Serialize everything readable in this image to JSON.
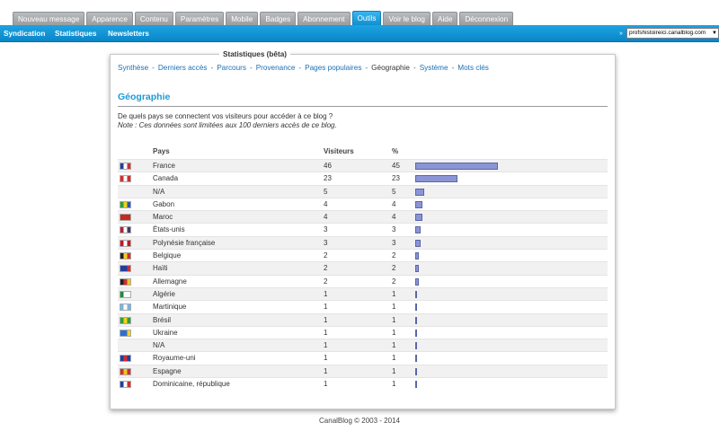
{
  "tabs": [
    {
      "label": "Nouveau message",
      "active": false
    },
    {
      "label": "Apparence",
      "active": false
    },
    {
      "label": "Contenu",
      "active": false
    },
    {
      "label": "Paramètres",
      "active": false
    },
    {
      "label": "Mobile",
      "active": false
    },
    {
      "label": "Badges",
      "active": false
    },
    {
      "label": "Abonnement",
      "active": false
    },
    {
      "label": "Outils",
      "active": true
    },
    {
      "label": "Voir le blog",
      "active": false
    },
    {
      "label": "Aide",
      "active": false
    },
    {
      "label": "Déconnexion",
      "active": false
    }
  ],
  "subnav": {
    "items": [
      "Syndication",
      "Statistiques",
      "Newsletters"
    ],
    "blog_selector_arrow": "»",
    "blog_selector_value": "profshistoireici.canalblog.com"
  },
  "panel": {
    "title": "Statistiques (bêta)",
    "nav": [
      {
        "label": "Synthèse",
        "current": false
      },
      {
        "label": "Derniers accès",
        "current": false
      },
      {
        "label": "Parcours",
        "current": false
      },
      {
        "label": "Provenance",
        "current": false
      },
      {
        "label": "Pages populaires",
        "current": false
      },
      {
        "label": "Géographie",
        "current": true
      },
      {
        "label": "Système",
        "current": false
      },
      {
        "label": "Mots clés",
        "current": false
      }
    ],
    "nav_separator": "-",
    "section_title": "Géographie",
    "question": "De quels pays se connectent vos visiteurs pour accéder à ce blog ?",
    "note": "Note : Ces données sont limitées aux 100 derniers accès de ce blog."
  },
  "table": {
    "headers": {
      "country": "Pays",
      "visitors": "Visiteurs",
      "percent": "%"
    },
    "rows": [
      {
        "country": "France",
        "visitors": "46",
        "percent": "45",
        "share": 45,
        "flag": "flag-france-icon",
        "colors": [
          "#1f3fa0",
          "#ffffff",
          "#d22d2d"
        ]
      },
      {
        "country": "Canada",
        "visitors": "23",
        "percent": "23",
        "share": 23,
        "flag": "flag-canada-icon",
        "colors": [
          "#d22d2d",
          "#ffffff",
          "#d22d2d"
        ]
      },
      {
        "country": "N/A",
        "visitors": "5",
        "percent": "5",
        "share": 5,
        "flag": "",
        "colors": []
      },
      {
        "country": "Gabon",
        "visitors": "4",
        "percent": "4",
        "share": 4,
        "flag": "flag-gabon-icon",
        "colors": [
          "#2e9e3a",
          "#f2d21a",
          "#2d56b0"
        ]
      },
      {
        "country": "Maroc",
        "visitors": "4",
        "percent": "4",
        "share": 4,
        "flag": "flag-morocco-icon",
        "colors": [
          "#c8281e",
          "#c8281e",
          "#c8281e"
        ]
      },
      {
        "country": "États-unis",
        "visitors": "3",
        "percent": "3",
        "share": 3,
        "flag": "flag-usa-icon",
        "colors": [
          "#b22234",
          "#ffffff",
          "#3c3b6e"
        ]
      },
      {
        "country": "Polynésie française",
        "visitors": "3",
        "percent": "3",
        "share": 3,
        "flag": "flag-french-polynesia-icon",
        "colors": [
          "#ce1126",
          "#ffffff",
          "#ce1126"
        ]
      },
      {
        "country": "Belgique",
        "visitors": "2",
        "percent": "2",
        "share": 2,
        "flag": "flag-belgium-icon",
        "colors": [
          "#222222",
          "#f5d020",
          "#d22d2d"
        ]
      },
      {
        "country": "Haïti",
        "visitors": "2",
        "percent": "2",
        "share": 2,
        "flag": "flag-haiti-icon",
        "colors": [
          "#1f3fa0",
          "#1f3fa0",
          "#d22d2d"
        ]
      },
      {
        "country": "Allemagne",
        "visitors": "2",
        "percent": "2",
        "share": 2,
        "flag": "flag-germany-icon",
        "colors": [
          "#222222",
          "#d22d2d",
          "#f5c518"
        ]
      },
      {
        "country": "Algérie",
        "visitors": "1",
        "percent": "1",
        "share": 1,
        "flag": "flag-algeria-icon",
        "colors": [
          "#1e8c3a",
          "#ffffff",
          "#ffffff"
        ]
      },
      {
        "country": "Martinique",
        "visitors": "1",
        "percent": "1",
        "share": 1,
        "flag": "flag-martinique-icon",
        "colors": [
          "#6fb7e8",
          "#ffffff",
          "#6fb7e8"
        ]
      },
      {
        "country": "Brésil",
        "visitors": "1",
        "percent": "1",
        "share": 1,
        "flag": "flag-brazil-icon",
        "colors": [
          "#2e9e3a",
          "#f2d21a",
          "#2e9e3a"
        ]
      },
      {
        "country": "Ukraine",
        "visitors": "1",
        "percent": "1",
        "share": 1,
        "flag": "flag-ukraine-icon",
        "colors": [
          "#2d6fd0",
          "#2d6fd0",
          "#f5d020"
        ]
      },
      {
        "country": "N/A",
        "visitors": "1",
        "percent": "1",
        "share": 1,
        "flag": "",
        "colors": []
      },
      {
        "country": "Royaume-uni",
        "visitors": "1",
        "percent": "1",
        "share": 1,
        "flag": "flag-uk-icon",
        "colors": [
          "#1f3fa0",
          "#d22d2d",
          "#1f3fa0"
        ]
      },
      {
        "country": "Espagne",
        "visitors": "1",
        "percent": "1",
        "share": 1,
        "flag": "flag-spain-icon",
        "colors": [
          "#d22d2d",
          "#f5c518",
          "#d22d2d"
        ]
      },
      {
        "country": "Dominicaine, république",
        "visitors": "1",
        "percent": "1",
        "share": 1,
        "flag": "flag-dominican-republic-icon",
        "colors": [
          "#1f3fa0",
          "#ffffff",
          "#d22d2d"
        ]
      }
    ]
  },
  "footer": "CanalBlog © 2003 - 2014",
  "theme": {
    "accent": "#1a9bd7",
    "link": "#1a6fb5",
    "bar": "#8a95d6"
  }
}
